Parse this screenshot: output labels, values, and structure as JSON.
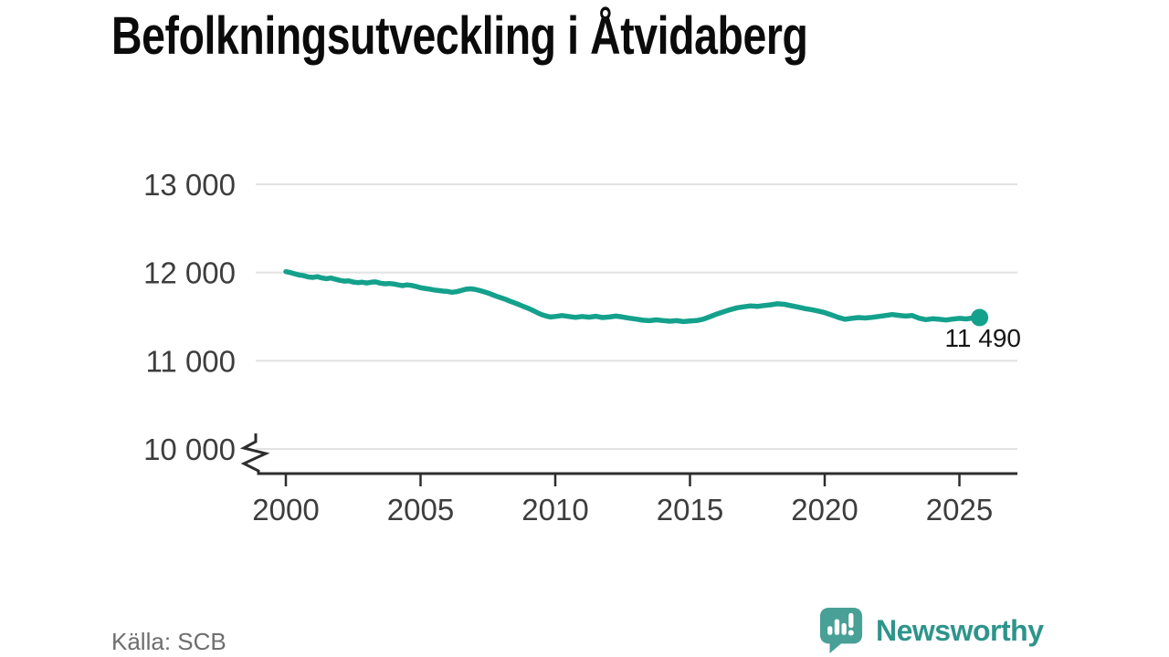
{
  "title": "Befolkningsutveckling i Åtvidaberg",
  "source": {
    "label": "Källa: SCB"
  },
  "footer": {
    "brand": "Newsworthy"
  },
  "colors": {
    "line": "#14a18c",
    "grid": "#e2e2e2",
    "axis": "#2d2d2d",
    "tick_text": "#3d3d3d",
    "logo_bubble": "#48a096",
    "logo_word": "#2e948b",
    "source_text": "#6e6e6e"
  },
  "chart_data": {
    "type": "line",
    "title": "Befolkningsutveckling i Åtvidaberg",
    "xlabel": "",
    "ylabel": "",
    "grid": "horizontal",
    "axis_break_at_bottom": true,
    "legend_position": "none",
    "color": "#14a18c",
    "grid_color": "#e2e2e2",
    "axis_color": "#2d2d2d",
    "xlim": [
      2000,
      2027.2
    ],
    "ylim": [
      10000,
      13000
    ],
    "x_axis": {
      "ticks": [
        2000,
        2005,
        2010,
        2015,
        2020,
        2025
      ]
    },
    "y_axis": {
      "ticks": [
        {
          "value": 13000,
          "label": "13 000"
        },
        {
          "value": 12000,
          "label": "12 000"
        },
        {
          "value": 11000,
          "label": "11 000"
        },
        {
          "value": 10000,
          "label": "10 000"
        }
      ]
    },
    "end_label": "11 490",
    "end_value": 11490,
    "series": [
      {
        "name": "Befolkning",
        "points": [
          [
            2000,
            12010
          ],
          [
            2000.17,
            12000
          ],
          [
            2000.33,
            11985
          ],
          [
            2000.5,
            11972
          ],
          [
            2000.67,
            11963
          ],
          [
            2000.83,
            11950
          ],
          [
            2001,
            11945
          ],
          [
            2001.17,
            11953
          ],
          [
            2001.33,
            11940
          ],
          [
            2001.5,
            11930
          ],
          [
            2001.67,
            11938
          ],
          [
            2001.83,
            11925
          ],
          [
            2002,
            11912
          ],
          [
            2002.17,
            11902
          ],
          [
            2002.33,
            11906
          ],
          [
            2002.5,
            11892
          ],
          [
            2002.67,
            11886
          ],
          [
            2002.83,
            11890
          ],
          [
            2003,
            11882
          ],
          [
            2003.17,
            11890
          ],
          [
            2003.33,
            11894
          ],
          [
            2003.5,
            11880
          ],
          [
            2003.67,
            11872
          ],
          [
            2003.83,
            11876
          ],
          [
            2004,
            11870
          ],
          [
            2004.17,
            11860
          ],
          [
            2004.33,
            11852
          ],
          [
            2004.5,
            11860
          ],
          [
            2004.67,
            11854
          ],
          [
            2004.83,
            11842
          ],
          [
            2005,
            11828
          ],
          [
            2005.17,
            11820
          ],
          [
            2005.33,
            11812
          ],
          [
            2005.5,
            11802
          ],
          [
            2005.67,
            11796
          ],
          [
            2005.83,
            11790
          ],
          [
            2006,
            11786
          ],
          [
            2006.17,
            11776
          ],
          [
            2006.33,
            11782
          ],
          [
            2006.5,
            11796
          ],
          [
            2006.67,
            11810
          ],
          [
            2006.83,
            11816
          ],
          [
            2007,
            11810
          ],
          [
            2007.17,
            11798
          ],
          [
            2007.33,
            11784
          ],
          [
            2007.5,
            11768
          ],
          [
            2007.67,
            11748
          ],
          [
            2007.83,
            11730
          ],
          [
            2008,
            11712
          ],
          [
            2008.17,
            11694
          ],
          [
            2008.33,
            11674
          ],
          [
            2008.5,
            11654
          ],
          [
            2008.67,
            11634
          ],
          [
            2008.83,
            11614
          ],
          [
            2009,
            11594
          ],
          [
            2009.17,
            11570
          ],
          [
            2009.33,
            11546
          ],
          [
            2009.5,
            11522
          ],
          [
            2009.67,
            11506
          ],
          [
            2009.83,
            11496
          ],
          [
            2010,
            11502
          ],
          [
            2010.25,
            11512
          ],
          [
            2010.5,
            11502
          ],
          [
            2010.75,
            11492
          ],
          [
            2011,
            11502
          ],
          [
            2011.25,
            11494
          ],
          [
            2011.5,
            11504
          ],
          [
            2011.75,
            11490
          ],
          [
            2012,
            11496
          ],
          [
            2012.25,
            11506
          ],
          [
            2012.5,
            11496
          ],
          [
            2012.75,
            11482
          ],
          [
            2013,
            11472
          ],
          [
            2013.25,
            11460
          ],
          [
            2013.5,
            11454
          ],
          [
            2013.75,
            11464
          ],
          [
            2014,
            11456
          ],
          [
            2014.25,
            11448
          ],
          [
            2014.5,
            11454
          ],
          [
            2014.75,
            11444
          ],
          [
            2015,
            11450
          ],
          [
            2015.25,
            11456
          ],
          [
            2015.5,
            11472
          ],
          [
            2015.75,
            11500
          ],
          [
            2016,
            11530
          ],
          [
            2016.25,
            11556
          ],
          [
            2016.5,
            11580
          ],
          [
            2016.75,
            11600
          ],
          [
            2017,
            11612
          ],
          [
            2017.25,
            11622
          ],
          [
            2017.5,
            11616
          ],
          [
            2017.75,
            11626
          ],
          [
            2018,
            11634
          ],
          [
            2018.25,
            11646
          ],
          [
            2018.5,
            11640
          ],
          [
            2018.75,
            11624
          ],
          [
            2019,
            11610
          ],
          [
            2019.25,
            11592
          ],
          [
            2019.5,
            11580
          ],
          [
            2019.75,
            11564
          ],
          [
            2020,
            11546
          ],
          [
            2020.25,
            11520
          ],
          [
            2020.5,
            11492
          ],
          [
            2020.75,
            11470
          ],
          [
            2021,
            11480
          ],
          [
            2021.25,
            11490
          ],
          [
            2021.5,
            11484
          ],
          [
            2021.75,
            11492
          ],
          [
            2022,
            11502
          ],
          [
            2022.25,
            11512
          ],
          [
            2022.5,
            11524
          ],
          [
            2022.75,
            11514
          ],
          [
            2023,
            11506
          ],
          [
            2023.25,
            11512
          ],
          [
            2023.5,
            11482
          ],
          [
            2023.75,
            11466
          ],
          [
            2024,
            11476
          ],
          [
            2024.25,
            11470
          ],
          [
            2024.5,
            11462
          ],
          [
            2024.75,
            11472
          ],
          [
            2025,
            11480
          ],
          [
            2025.25,
            11474
          ],
          [
            2025.5,
            11484
          ],
          [
            2025.75,
            11490
          ]
        ]
      }
    ]
  }
}
